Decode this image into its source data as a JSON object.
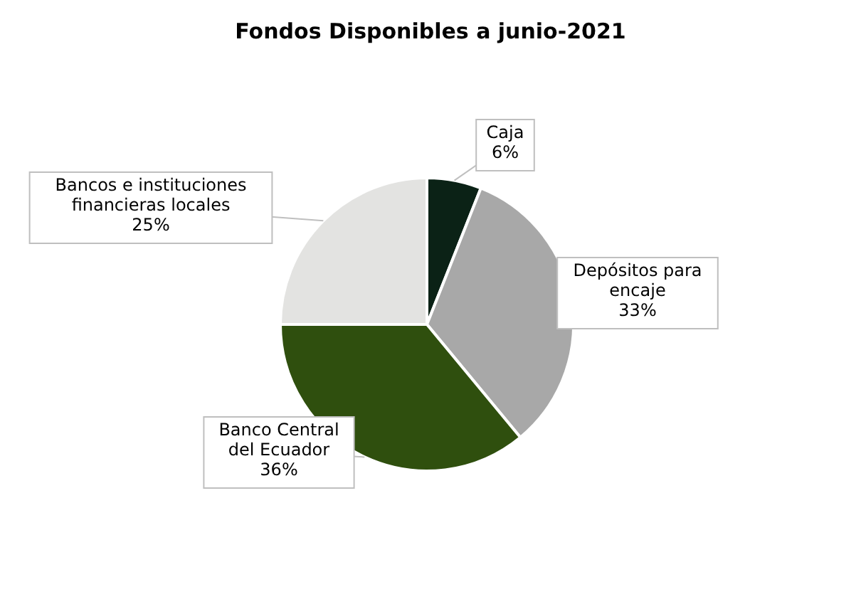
{
  "chart_data": {
    "type": "pie",
    "title": "Fondos Disponibles a junio-2021",
    "categories": [
      "Caja",
      "Depósitos para encaje",
      "Banco Central del Ecuador",
      "Bancos e instituciones financieras locales"
    ],
    "values": [
      6,
      33,
      36,
      25
    ],
    "colors": [
      "#0b2216",
      "#a8a8a8",
      "#2f4f0e",
      "#e3e3e1"
    ],
    "value_labels": [
      "6%",
      "33%",
      "36%",
      "25%"
    ],
    "legend": false
  }
}
